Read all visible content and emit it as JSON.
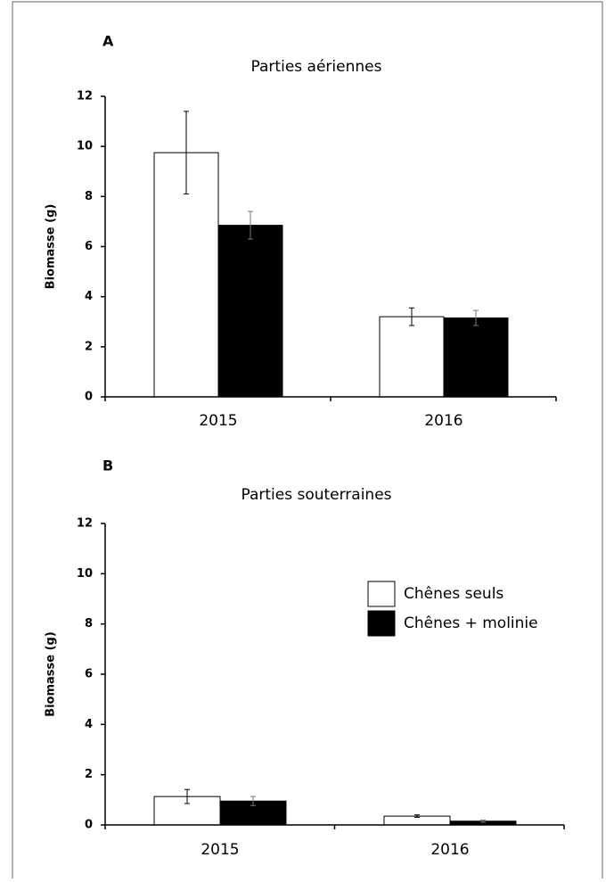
{
  "chart_data": [
    {
      "type": "bar",
      "label": "A",
      "title": "Parties aériennes",
      "y_label": "Biomasse (g)",
      "categories": [
        "2015",
        "2016"
      ],
      "series": [
        {
          "color": "#ffffff",
          "values": [
            9.75,
            3.2
          ],
          "errors": [
            1.65,
            0.35
          ]
        },
        {
          "color": "#000000",
          "values": [
            6.85,
            3.15
          ],
          "errors": [
            0.55,
            0.3
          ]
        }
      ],
      "ylim": [
        0,
        12
      ],
      "yticks": [
        0,
        2,
        4,
        6,
        8,
        10,
        12
      ]
    },
    {
      "type": "bar",
      "label": "B",
      "title": "Parties souterraines",
      "y_label": "Biomasse (g)",
      "categories": [
        "2015",
        "2016"
      ],
      "series": [
        {
          "name": "Chênes seuls",
          "color": "#ffffff",
          "values": [
            1.13,
            0.35
          ],
          "errors": [
            0.28,
            0.05
          ]
        },
        {
          "name": "Chênes + molinie",
          "color": "#000000",
          "values": [
            0.95,
            0.15
          ],
          "errors": [
            0.18,
            0.04
          ]
        }
      ],
      "ylim": [
        0,
        12
      ],
      "yticks": [
        0,
        2,
        4,
        6,
        8,
        10,
        12
      ],
      "legend": "upper right"
    }
  ]
}
